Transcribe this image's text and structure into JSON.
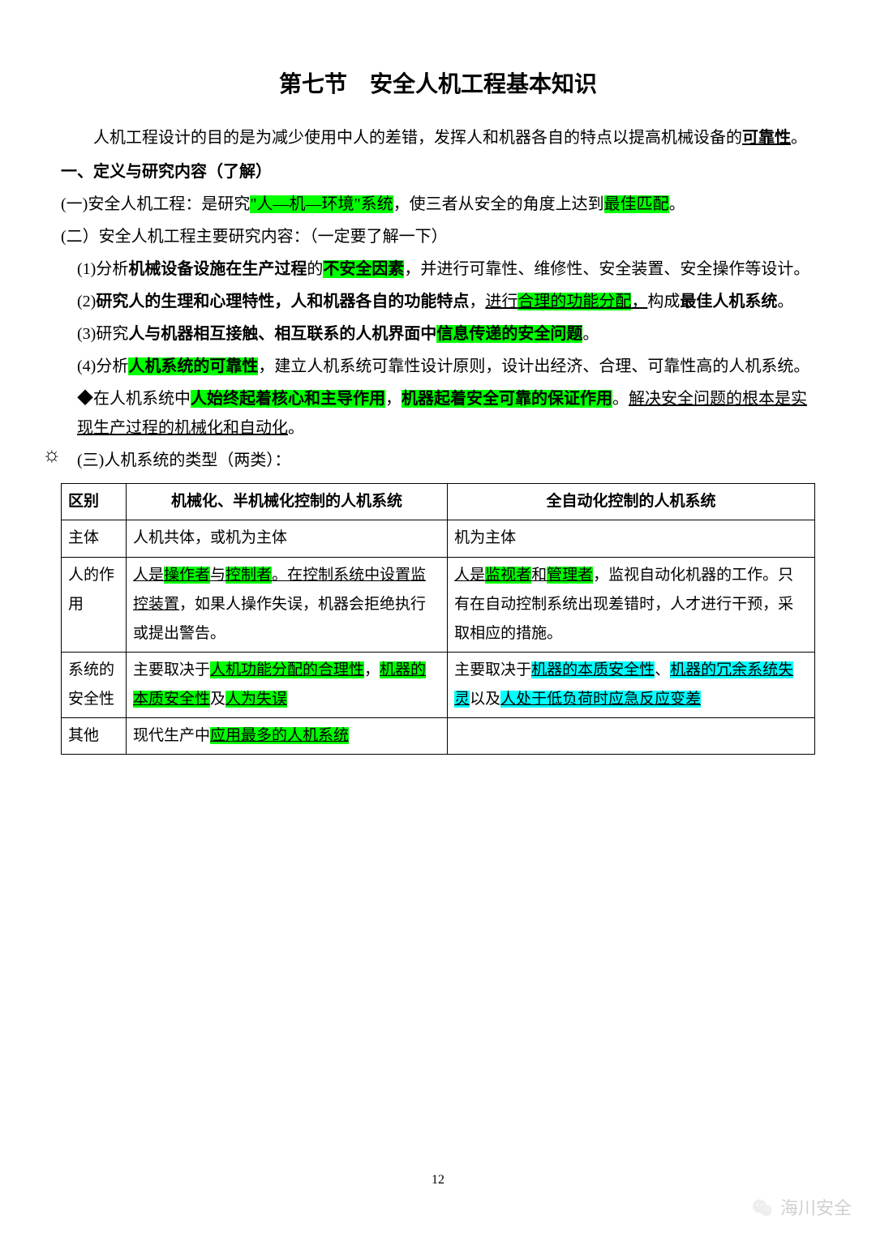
{
  "title": "第七节　安全人机工程基本知识",
  "intro_a": "人机工程设计的目的是为减少使用中人的差错，发挥人和机器各自的特点以提高机械设备的",
  "intro_b": "可靠性",
  "intro_c": "。",
  "heading1": "一、定义与研究内容（了解）",
  "p1a": "(一)安全人机工程：是研究",
  "p1b": "\"人—机—环境\"系统",
  "p1c": "，使三者从安全的角度上达到",
  "p1d": "最佳匹配",
  "p1e": "。",
  "p2": "(二）安全人机工程主要研究内容：（一定要了解一下）",
  "p3a": "(1)分析",
  "p3b": "机械设备设施在生产过程",
  "p3c": "的",
  "p3d": "不安全因素",
  "p3e": "，并进行可靠性、维修性、安全装置、安全操作等设计。",
  "p4a": "(2)",
  "p4b": "研究人的生理和心理特性，人和机器各自的功能特点",
  "p4c": "，",
  "p4d": "进行",
  "p4e": "合理的功能分配",
  "p4f": "，",
  "p4g": "构成",
  "p4h": "最佳人机系统",
  "p4i": "。",
  "p5a": "(3)研究",
  "p5b": "人与机器相互接触、相互联系的人机界面中",
  "p5c": "信息传递的安全问题",
  "p5d": "。",
  "p6a": "(4)分析",
  "p6b": "人机系统的可靠性",
  "p6c": "，建立人机系统可靠性设计原则，设计出经济、合理、可靠性高的人机系统。",
  "p7a": "◆在人机系统中",
  "p7b": "人始终起着核心和主导作用",
  "p7c": "，",
  "p7d": "机器起着安全可靠的保证作用",
  "p7e": "。",
  "p7f": "解决安全问题的根本是实现生产过程的机械化和自动化",
  "p7g": "。",
  "p8": "(三)人机系统的类型（两类）：",
  "table": {
    "headers": [
      "区别",
      "机械化、半机械化控制的人机系统",
      "全自动化控制的人机系统"
    ],
    "rows": [
      {
        "c1": "主体",
        "c2": [
          {
            "t": "人机共体，或机为主体"
          }
        ],
        "c3": [
          {
            "t": "机为主体"
          }
        ]
      },
      {
        "c1": "人的作用",
        "c2": [
          {
            "t": "人是",
            "u": true
          },
          {
            "t": "操作者",
            "u": true,
            "hl": "green"
          },
          {
            "t": "与",
            "u": true
          },
          {
            "t": "控制者",
            "u": true,
            "hl": "green"
          },
          {
            "t": "。在控制系统中设置监控装置",
            "u": true
          },
          {
            "t": "，如果人操作失误，机器会拒绝执行或提出警告。"
          }
        ],
        "c3": [
          {
            "t": "人是",
            "u": true
          },
          {
            "t": "监视者",
            "u": true,
            "hl": "green"
          },
          {
            "t": "和",
            "u": true
          },
          {
            "t": "管理者",
            "u": true,
            "hl": "green"
          },
          {
            "t": "，"
          },
          {
            "t": "监视自动化机器的工作。只有在自动控制系统出现差错时，人才进行干预，采取相应的措施。"
          }
        ]
      },
      {
        "c1": "系统的安全性",
        "c2": [
          {
            "t": "主要取决于"
          },
          {
            "t": "人机功能分配的合理性",
            "u": true,
            "hl": "green"
          },
          {
            "t": "，"
          },
          {
            "t": "机器的本质安全性",
            "u": true,
            "hl": "green"
          },
          {
            "t": "及"
          },
          {
            "t": "人为失误",
            "u": true,
            "hl": "green"
          }
        ],
        "c3": [
          {
            "t": "主要取决于"
          },
          {
            "t": "机器的本质安全性",
            "u": true,
            "hl": "cyan"
          },
          {
            "t": "、"
          },
          {
            "t": "机器的冗余系统失灵",
            "u": true,
            "hl": "cyan"
          },
          {
            "t": "以及"
          },
          {
            "t": "人处于低负荷时应急反应变差",
            "u": true,
            "hl": "cyan"
          }
        ]
      },
      {
        "c1": "其他",
        "c2": [
          {
            "t": "现代生产中"
          },
          {
            "t": "应用最多的人机系统",
            "u": true,
            "hl": "green"
          }
        ],
        "c3": []
      }
    ]
  },
  "pageNumber": "12",
  "watermark": "海川安全",
  "colors": {
    "hl_green": "#00ff00",
    "hl_cyan": "#00ffff",
    "text": "#000000",
    "bg": "#ffffff",
    "wm": "#d0d0d0"
  }
}
